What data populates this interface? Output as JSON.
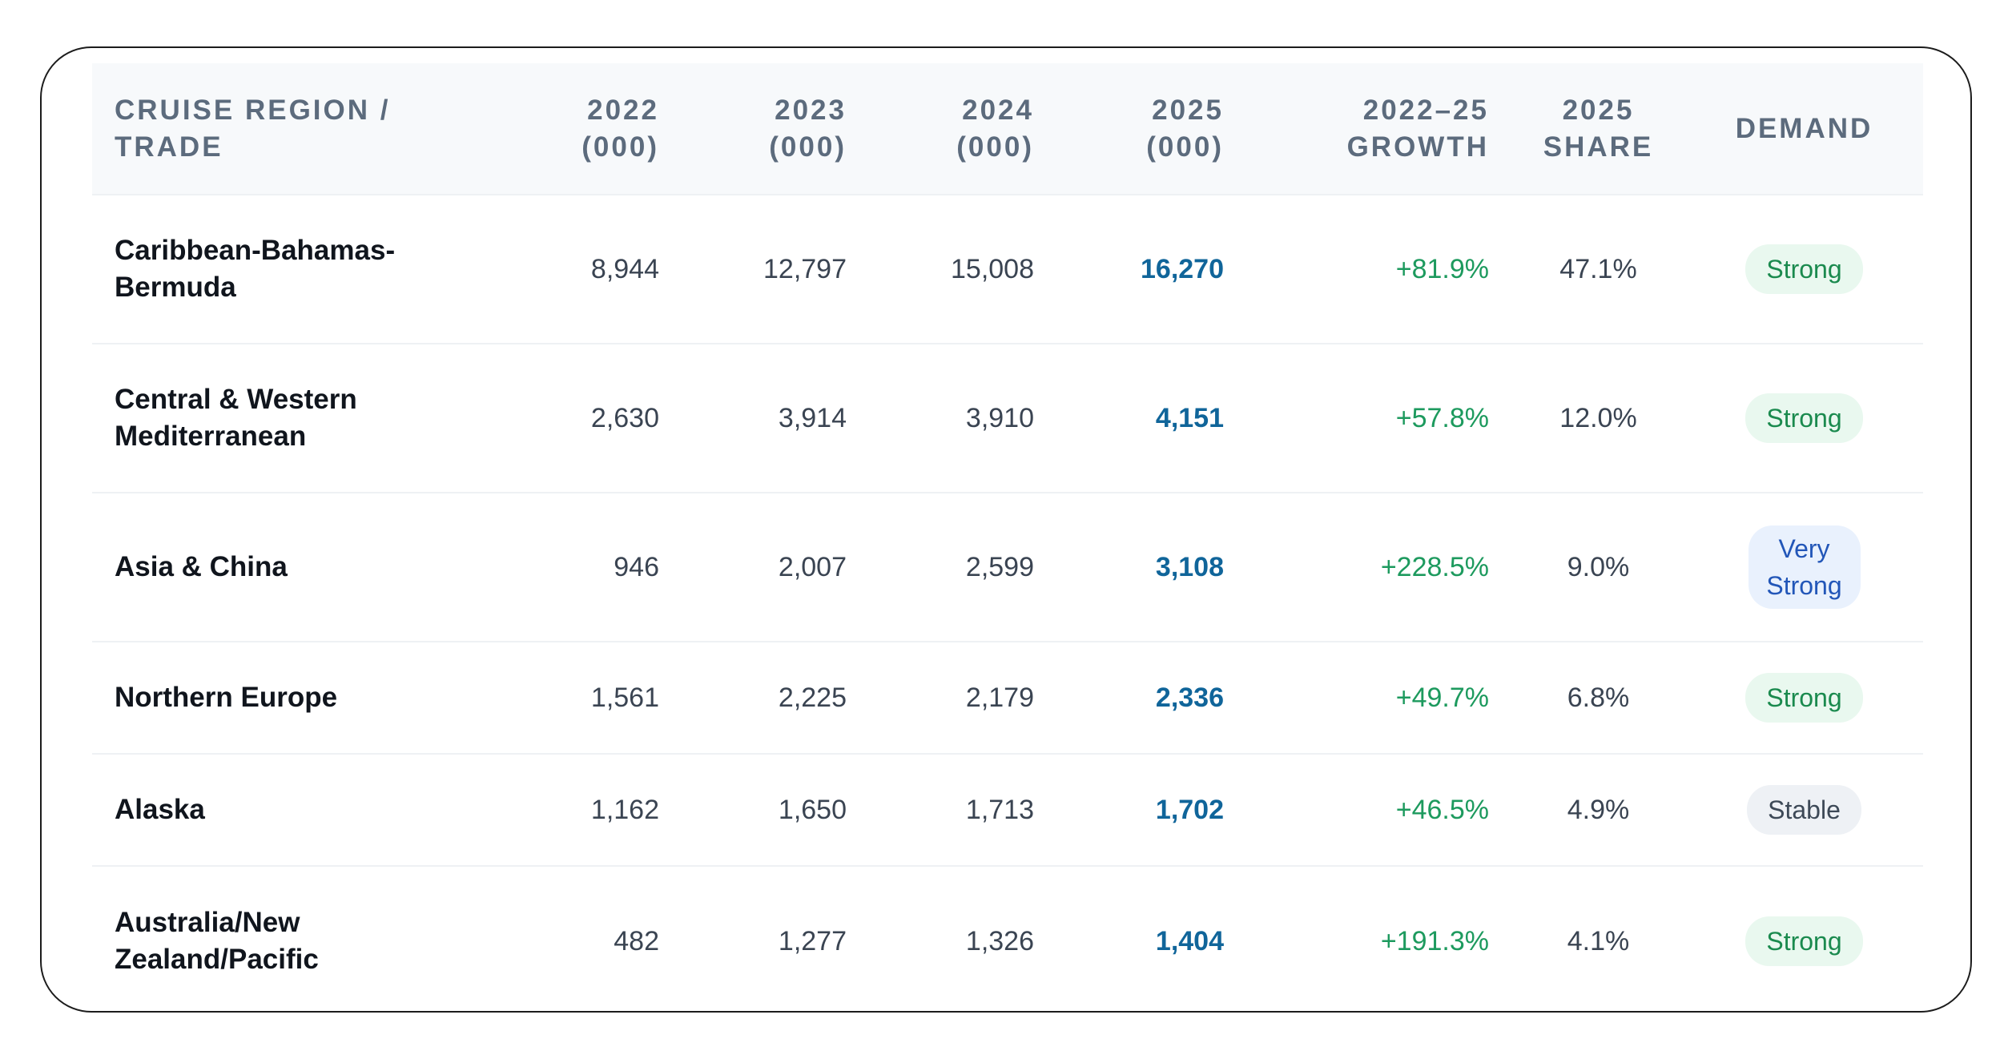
{
  "table": {
    "headers": {
      "region": "CRUISE REGION / TRADE",
      "y2022": "2022 (000)",
      "y2023": "2023 (000)",
      "y2024": "2024 (000)",
      "y2025": "2025 (000)",
      "growth": "2022–25 GROWTH",
      "share": "2025 SHARE",
      "demand": "DEMAND"
    },
    "rows": [
      {
        "region": "Caribbean-Bahamas-Bermuda",
        "y2022": "8,944",
        "y2023": "12,797",
        "y2024": "15,008",
        "y2025": "16,270",
        "growth": "+81.9%",
        "share": "47.1%",
        "demand": "Strong"
      },
      {
        "region": "Central & Western Mediterranean",
        "y2022": "2,630",
        "y2023": "3,914",
        "y2024": "3,910",
        "y2025": "4,151",
        "growth": "+57.8%",
        "share": "12.0%",
        "demand": "Strong"
      },
      {
        "region": "Asia & China",
        "y2022": "946",
        "y2023": "2,007",
        "y2024": "2,599",
        "y2025": "3,108",
        "growth": "+228.5%",
        "share": "9.0%",
        "demand": "Very Strong"
      },
      {
        "region": "Northern Europe",
        "y2022": "1,561",
        "y2023": "2,225",
        "y2024": "2,179",
        "y2025": "2,336",
        "growth": "+49.7%",
        "share": "6.8%",
        "demand": "Strong"
      },
      {
        "region": "Alaska",
        "y2022": "1,162",
        "y2023": "1,650",
        "y2024": "1,713",
        "y2025": "1,702",
        "growth": "+46.5%",
        "share": "4.9%",
        "demand": "Stable"
      },
      {
        "region": "Australia/New Zealand/Pacific",
        "y2022": "482",
        "y2023": "1,277",
        "y2024": "1,326",
        "y2025": "1,404",
        "growth": "+191.3%",
        "share": "4.1%",
        "demand": "Strong"
      }
    ]
  },
  "colors": {
    "highlight": "#10659a",
    "growth": "#1d9a5e",
    "strong_badge": "#1a8a4e",
    "very_strong_badge": "#2256b8",
    "stable_badge": "#3d4957",
    "header_text": "#5c6b7d"
  }
}
